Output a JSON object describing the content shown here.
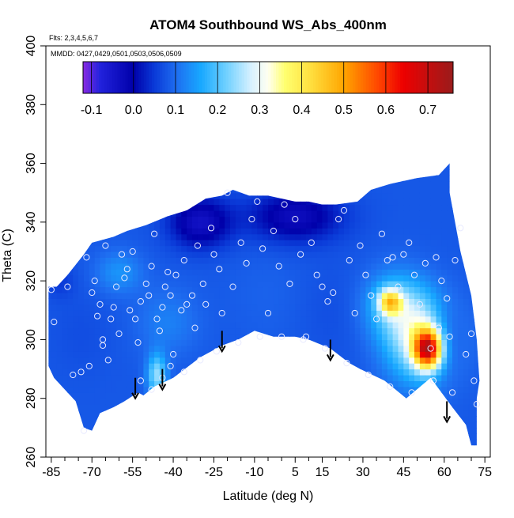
{
  "chart_data": {
    "type": "heatmap",
    "title": "ATOM4 Southbound WS_Abs_400nm",
    "annotations": [
      "Flts: 2,3,4,5,6,7",
      "MMDD: 0427,0429,0501,0503,0506,0509"
    ],
    "xlabel": "Latitude (deg N)",
    "ylabel": "Theta (C)",
    "xlim": [
      -87,
      77
    ],
    "ylim": [
      260,
      400
    ],
    "x_ticks": [
      -85,
      -70,
      -55,
      -40,
      -25,
      -10,
      5,
      15,
      30,
      45,
      60,
      75
    ],
    "y_ticks": [
      260,
      280,
      300,
      320,
      340,
      360,
      380,
      400
    ],
    "colorbar": {
      "min": -0.12,
      "max": 0.76,
      "ticks": [
        -0.1,
        0.0,
        0.1,
        0.2,
        0.3,
        0.4,
        0.5,
        0.6,
        0.7
      ],
      "tick_labels": [
        "-0.1",
        "0.0",
        "0.1",
        "0.2",
        "0.3",
        "0.4",
        "0.5",
        "0.6",
        "0.7"
      ],
      "stops": [
        {
          "v": -0.12,
          "color": "#8a2be2"
        },
        {
          "v": -0.08,
          "color": "#2222dd"
        },
        {
          "v": 0.0,
          "color": "#0000aa"
        },
        {
          "v": 0.05,
          "color": "#0a3ad8"
        },
        {
          "v": 0.1,
          "color": "#1e6cf0"
        },
        {
          "v": 0.16,
          "color": "#18a8ff"
        },
        {
          "v": 0.22,
          "color": "#6ed0ff"
        },
        {
          "v": 0.28,
          "color": "#d8f1ff"
        },
        {
          "v": 0.32,
          "color": "#fffff0"
        },
        {
          "v": 0.36,
          "color": "#ffff70"
        },
        {
          "v": 0.42,
          "color": "#ffe040"
        },
        {
          "v": 0.5,
          "color": "#ffa500"
        },
        {
          "v": 0.58,
          "color": "#ff4800"
        },
        {
          "v": 0.64,
          "color": "#ee0000"
        },
        {
          "v": 0.76,
          "color": "#9a1c1c"
        }
      ]
    },
    "domain_outline": [
      [
        -86,
        318
      ],
      [
        -83,
        318
      ],
      [
        -79,
        322
      ],
      [
        -73,
        329
      ],
      [
        -70,
        333
      ],
      [
        -62,
        335
      ],
      [
        -57,
        337
      ],
      [
        -50,
        339
      ],
      [
        -42,
        342
      ],
      [
        -35,
        344
      ],
      [
        -28,
        348
      ],
      [
        -22,
        349
      ],
      [
        -18,
        351
      ],
      [
        -12,
        349
      ],
      [
        -5,
        349
      ],
      [
        0,
        348
      ],
      [
        5,
        347
      ],
      [
        10,
        347
      ],
      [
        15,
        346
      ],
      [
        20,
        346
      ],
      [
        28,
        347
      ],
      [
        33,
        351
      ],
      [
        40,
        353
      ],
      [
        50,
        355
      ],
      [
        58,
        356
      ],
      [
        62,
        360
      ],
      [
        62,
        350
      ],
      [
        66,
        330
      ],
      [
        70,
        315
      ],
      [
        72,
        300
      ],
      [
        73,
        286
      ],
      [
        72,
        280
      ],
      [
        72,
        264
      ],
      [
        70,
        264
      ],
      [
        68,
        271
      ],
      [
        63,
        277
      ],
      [
        55,
        287
      ],
      [
        46,
        280
      ],
      [
        38,
        286
      ],
      [
        29,
        290
      ],
      [
        25,
        292
      ],
      [
        18,
        297
      ],
      [
        10,
        300
      ],
      [
        5,
        301
      ],
      [
        -3,
        301
      ],
      [
        -10,
        303
      ],
      [
        -16,
        300
      ],
      [
        -22,
        298
      ],
      [
        -30,
        294
      ],
      [
        -40,
        287
      ],
      [
        -47,
        284
      ],
      [
        -51,
        281
      ],
      [
        -53,
        282
      ],
      [
        -58,
        279
      ],
      [
        -62,
        277
      ],
      [
        -67,
        275
      ],
      [
        -70,
        269
      ],
      [
        -73,
        270
      ],
      [
        -76,
        279
      ],
      [
        -80,
        283
      ],
      [
        -84,
        287
      ],
      [
        -86,
        291
      ]
    ],
    "field_background": 0.08,
    "field_features": [
      {
        "x": 54,
        "y": 297,
        "value": 0.58,
        "sx": 3.5,
        "sy": 4.5
      },
      {
        "x": 52,
        "y": 300,
        "value": 0.3,
        "sx": 9,
        "sy": 10
      },
      {
        "x": 40,
        "y": 313,
        "value": 0.34,
        "sx": 3,
        "sy": 3
      },
      {
        "x": 42,
        "y": 312,
        "value": 0.2,
        "sx": 8,
        "sy": 8
      },
      {
        "x": 38,
        "y": 322,
        "value": 0.08,
        "sx": 10,
        "sy": 10
      },
      {
        "x": -46,
        "y": 288,
        "value": 0.24,
        "sx": 2.5,
        "sy": 5
      },
      {
        "x": -42,
        "y": 306,
        "value": 0.12,
        "sx": 8,
        "sy": 8
      },
      {
        "x": -60,
        "y": 323,
        "value": 0.14,
        "sx": 6,
        "sy": 5
      },
      {
        "x": -74,
        "y": 302,
        "value": 0.07,
        "sx": 8,
        "sy": 10
      },
      {
        "x": -82,
        "y": 320,
        "value": 0.05,
        "sx": 4,
        "sy": 4
      },
      {
        "x": -5,
        "y": 315,
        "value": 0.09,
        "sx": 10,
        "sy": 12
      },
      {
        "x": 20,
        "y": 310,
        "value": 0.07,
        "sx": 10,
        "sy": 12
      },
      {
        "x": -30,
        "y": 340,
        "value": -0.04,
        "sx": 8,
        "sy": 6
      },
      {
        "x": 5,
        "y": 342,
        "value": -0.03,
        "sx": 12,
        "sy": 6
      },
      {
        "x": 60,
        "y": 300,
        "value": -0.02,
        "sx": 5,
        "sy": 8
      }
    ],
    "observation_points": [
      [
        -85,
        317
      ],
      [
        -84,
        306
      ],
      [
        -79,
        318
      ],
      [
        -77,
        288
      ],
      [
        -72,
        328
      ],
      [
        -70,
        316
      ],
      [
        -69,
        320
      ],
      [
        -68,
        308
      ],
      [
        -67,
        312
      ],
      [
        -66,
        300
      ],
      [
        -66,
        298
      ],
      [
        -65,
        332
      ],
      [
        -63,
        307
      ],
      [
        -62,
        311
      ],
      [
        -61,
        318
      ],
      [
        -60,
        302
      ],
      [
        -59,
        329
      ],
      [
        -58,
        321
      ],
      [
        -57,
        324
      ],
      [
        -56,
        310
      ],
      [
        -55,
        330
      ],
      [
        -54,
        307
      ],
      [
        -53,
        299
      ],
      [
        -52,
        313
      ],
      [
        -50,
        319
      ],
      [
        -49,
        315
      ],
      [
        -48,
        325
      ],
      [
        -47,
        336
      ],
      [
        -46,
        307
      ],
      [
        -45,
        303
      ],
      [
        -44,
        311
      ],
      [
        -43,
        318
      ],
      [
        -42,
        323
      ],
      [
        -41,
        315
      ],
      [
        -40,
        295
      ],
      [
        -39,
        322
      ],
      [
        -37,
        310
      ],
      [
        -36,
        327
      ],
      [
        -35,
        312
      ],
      [
        -33,
        315
      ],
      [
        -32,
        304
      ],
      [
        -31,
        332
      ],
      [
        -29,
        319
      ],
      [
        -28,
        312
      ],
      [
        -26,
        338
      ],
      [
        -25,
        329
      ],
      [
        -23,
        324
      ],
      [
        -22,
        309
      ],
      [
        -20,
        350
      ],
      [
        -18,
        318
      ],
      [
        -15,
        333
      ],
      [
        -13,
        326
      ],
      [
        -11,
        341
      ],
      [
        -9,
        347
      ],
      [
        -7,
        331
      ],
      [
        -5,
        309
      ],
      [
        -3,
        337
      ],
      [
        -1,
        325
      ],
      [
        1,
        346
      ],
      [
        3,
        319
      ],
      [
        5,
        341
      ],
      [
        7,
        329
      ],
      [
        9,
        301
      ],
      [
        11,
        333
      ],
      [
        13,
        322
      ],
      [
        15,
        318
      ],
      [
        17,
        313
      ],
      [
        19,
        316
      ],
      [
        21,
        341
      ],
      [
        23,
        344
      ],
      [
        25,
        327
      ],
      [
        27,
        309
      ],
      [
        29,
        332
      ],
      [
        31,
        322
      ],
      [
        33,
        315
      ],
      [
        35,
        307
      ],
      [
        37,
        336
      ],
      [
        39,
        327
      ],
      [
        41,
        328
      ],
      [
        43,
        318
      ],
      [
        45,
        329
      ],
      [
        47,
        333
      ],
      [
        49,
        322
      ],
      [
        51,
        312
      ],
      [
        53,
        326
      ],
      [
        55,
        297
      ],
      [
        57,
        328
      ],
      [
        58,
        304
      ],
      [
        59,
        320
      ],
      [
        61,
        314
      ],
      [
        62,
        301
      ],
      [
        63,
        282
      ],
      [
        64,
        327
      ],
      [
        66,
        338
      ],
      [
        68,
        295
      ],
      [
        70,
        302
      ],
      [
        71,
        286
      ],
      [
        72,
        278
      ],
      [
        -74,
        289
      ],
      [
        -73,
        269
      ],
      [
        -71,
        291
      ],
      [
        -64,
        293
      ],
      [
        -52,
        286
      ],
      [
        -48,
        283
      ],
      [
        -44,
        287
      ],
      [
        -41,
        291
      ],
      [
        -36,
        289
      ],
      [
        -30,
        293
      ],
      [
        -24,
        296
      ],
      [
        -16,
        299
      ],
      [
        -8,
        301
      ],
      [
        0,
        301
      ],
      [
        8,
        300
      ],
      [
        16,
        297
      ],
      [
        24,
        292
      ],
      [
        32,
        288
      ],
      [
        40,
        284
      ],
      [
        48,
        282
      ],
      [
        56,
        286
      ]
    ],
    "arrows": [
      {
        "x": -54,
        "y_top": 287,
        "y_bottom": 280
      },
      {
        "x": -44,
        "y_top": 290,
        "y_bottom": 283
      },
      {
        "x": -22,
        "y_top": 303,
        "y_bottom": 296
      },
      {
        "x": 18,
        "y_top": 300,
        "y_bottom": 293
      },
      {
        "x": 61,
        "y_top": 279,
        "y_bottom": 272
      }
    ]
  }
}
